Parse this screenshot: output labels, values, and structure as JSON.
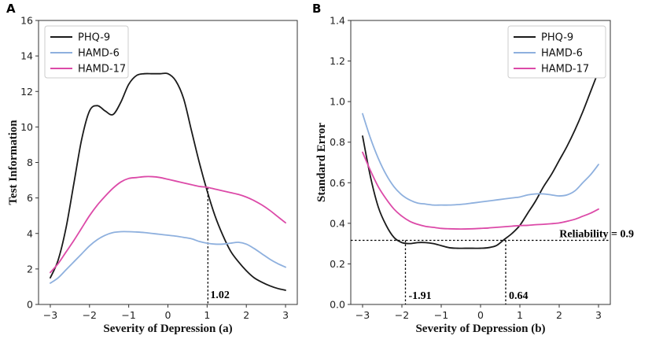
{
  "chart_data": [
    {
      "panel": "A",
      "type": "line",
      "xlabel": "Severity of Depression (a)",
      "ylabel": "Test Information",
      "xlim": [
        -3.3,
        3.3
      ],
      "ylim": [
        0,
        16
      ],
      "xticks": [
        -3,
        -2,
        -1,
        0,
        1,
        2,
        3
      ],
      "xtick_labels": [
        "−3",
        "−2",
        "−1",
        "0",
        "1",
        "2",
        "3"
      ],
      "yticks": [
        0,
        2,
        4,
        6,
        8,
        10,
        12,
        14,
        16
      ],
      "legend": "top-left",
      "series": [
        {
          "name": "PHQ-9",
          "color": "#1a1a1a",
          "x": [
            -3,
            -2.8,
            -2.6,
            -2.4,
            -2.2,
            -2.0,
            -1.8,
            -1.6,
            -1.4,
            -1.2,
            -1.0,
            -0.8,
            -0.6,
            -0.4,
            -0.2,
            0.0,
            0.2,
            0.4,
            0.6,
            0.8,
            1.0,
            1.2,
            1.4,
            1.6,
            1.8,
            2.0,
            2.2,
            2.4,
            2.6,
            2.8,
            3.0
          ],
          "values": [
            1.5,
            2.5,
            4.3,
            6.8,
            9.3,
            10.9,
            11.2,
            10.9,
            10.7,
            11.4,
            12.4,
            12.9,
            13.0,
            13.0,
            13.0,
            13.0,
            12.6,
            11.6,
            9.8,
            8.0,
            6.4,
            5.0,
            3.9,
            3.0,
            2.4,
            1.9,
            1.5,
            1.25,
            1.05,
            0.9,
            0.8
          ]
        },
        {
          "name": "HAMD-6",
          "color": "#8eb0de",
          "x": [
            -3,
            -2.8,
            -2.6,
            -2.4,
            -2.2,
            -2.0,
            -1.8,
            -1.6,
            -1.4,
            -1.2,
            -1.0,
            -0.8,
            -0.6,
            -0.4,
            -0.2,
            0.0,
            0.2,
            0.4,
            0.6,
            0.8,
            1.0,
            1.2,
            1.4,
            1.6,
            1.8,
            2.0,
            2.2,
            2.4,
            2.6,
            2.8,
            3.0
          ],
          "values": [
            1.2,
            1.5,
            1.95,
            2.4,
            2.85,
            3.3,
            3.65,
            3.9,
            4.05,
            4.1,
            4.1,
            4.08,
            4.05,
            4.0,
            3.95,
            3.9,
            3.85,
            3.78,
            3.7,
            3.55,
            3.45,
            3.4,
            3.4,
            3.45,
            3.5,
            3.4,
            3.15,
            2.85,
            2.55,
            2.3,
            2.1
          ]
        },
        {
          "name": "HAMD-17",
          "color": "#dc4aa8",
          "x": [
            -3,
            -2.8,
            -2.6,
            -2.4,
            -2.2,
            -2.0,
            -1.8,
            -1.6,
            -1.4,
            -1.2,
            -1.0,
            -0.8,
            -0.6,
            -0.4,
            -0.2,
            0.0,
            0.2,
            0.4,
            0.6,
            0.8,
            1.0,
            1.2,
            1.4,
            1.6,
            1.8,
            2.0,
            2.2,
            2.4,
            2.6,
            2.8,
            3.0
          ],
          "values": [
            1.8,
            2.3,
            2.95,
            3.6,
            4.3,
            5.0,
            5.6,
            6.1,
            6.55,
            6.9,
            7.1,
            7.15,
            7.2,
            7.2,
            7.15,
            7.05,
            6.95,
            6.85,
            6.75,
            6.65,
            6.6,
            6.5,
            6.4,
            6.3,
            6.2,
            6.05,
            5.85,
            5.6,
            5.3,
            4.95,
            4.6
          ]
        }
      ],
      "annotations": [
        {
          "label": "1.02",
          "x": 1.02,
          "y": 6.6
        }
      ]
    },
    {
      "panel": "B",
      "type": "line",
      "xlabel": "Severity of Depression (b)",
      "ylabel": "Standard Error",
      "xlim": [
        -3.3,
        3.3
      ],
      "ylim": [
        0.0,
        1.4
      ],
      "xticks": [
        -3,
        -2,
        -1,
        0,
        1,
        2,
        3
      ],
      "xtick_labels": [
        "−3",
        "−2",
        "−1",
        "0",
        "1",
        "2",
        "3"
      ],
      "yticks": [
        0.0,
        0.2,
        0.4,
        0.6,
        0.8,
        1.0,
        1.2,
        1.4
      ],
      "ytick_labels": [
        "0.0",
        "0.2",
        "0.4",
        "0.6",
        "0.8",
        "1.0",
        "1.2",
        "1.4"
      ],
      "legend": "top-right",
      "series": [
        {
          "name": "PHQ-9",
          "color": "#1a1a1a",
          "x": [
            -3,
            -2.8,
            -2.6,
            -2.4,
            -2.2,
            -2.0,
            -1.8,
            -1.6,
            -1.4,
            -1.2,
            -1.0,
            -0.8,
            -0.6,
            -0.4,
            -0.2,
            0.0,
            0.2,
            0.4,
            0.6,
            0.8,
            1.0,
            1.2,
            1.4,
            1.6,
            1.8,
            2.0,
            2.2,
            2.4,
            2.6,
            2.8,
            3.0
          ],
          "values": [
            0.83,
            0.63,
            0.48,
            0.39,
            0.33,
            0.305,
            0.3,
            0.305,
            0.305,
            0.3,
            0.29,
            0.28,
            0.277,
            0.277,
            0.277,
            0.277,
            0.28,
            0.29,
            0.32,
            0.35,
            0.39,
            0.45,
            0.51,
            0.58,
            0.64,
            0.71,
            0.78,
            0.86,
            0.95,
            1.05,
            1.15
          ]
        },
        {
          "name": "HAMD-6",
          "color": "#8eb0de",
          "x": [
            -3,
            -2.8,
            -2.6,
            -2.4,
            -2.2,
            -2.0,
            -1.8,
            -1.6,
            -1.4,
            -1.2,
            -1.0,
            -0.8,
            -0.6,
            -0.4,
            -0.2,
            0.0,
            0.2,
            0.4,
            0.6,
            0.8,
            1.0,
            1.2,
            1.4,
            1.6,
            1.8,
            2.0,
            2.2,
            2.4,
            2.6,
            2.8,
            3.0
          ],
          "values": [
            0.94,
            0.82,
            0.72,
            0.64,
            0.58,
            0.54,
            0.515,
            0.5,
            0.495,
            0.49,
            0.49,
            0.49,
            0.492,
            0.495,
            0.5,
            0.505,
            0.51,
            0.515,
            0.52,
            0.525,
            0.53,
            0.54,
            0.545,
            0.545,
            0.54,
            0.535,
            0.54,
            0.56,
            0.6,
            0.64,
            0.69
          ]
        },
        {
          "name": "HAMD-17",
          "color": "#dc4aa8",
          "x": [
            -3,
            -2.8,
            -2.6,
            -2.4,
            -2.2,
            -2.0,
            -1.8,
            -1.6,
            -1.4,
            -1.2,
            -1.0,
            -0.8,
            -0.6,
            -0.4,
            -0.2,
            0.0,
            0.2,
            0.4,
            0.6,
            0.8,
            1.0,
            1.2,
            1.4,
            1.6,
            1.8,
            2.0,
            2.2,
            2.4,
            2.6,
            2.8,
            3.0
          ],
          "values": [
            0.75,
            0.66,
            0.58,
            0.52,
            0.47,
            0.435,
            0.41,
            0.395,
            0.385,
            0.38,
            0.375,
            0.373,
            0.372,
            0.372,
            0.373,
            0.375,
            0.377,
            0.38,
            0.383,
            0.386,
            0.389,
            0.39,
            0.393,
            0.395,
            0.398,
            0.402,
            0.41,
            0.42,
            0.435,
            0.45,
            0.47
          ]
        }
      ],
      "annotations": [
        {
          "label": "Reliability = 0.9",
          "y": 0.316
        },
        {
          "label": "-1.91",
          "x": -1.91,
          "y": 0.316
        },
        {
          "label": "0.64",
          "x": 0.64,
          "y": 0.316
        }
      ]
    }
  ]
}
